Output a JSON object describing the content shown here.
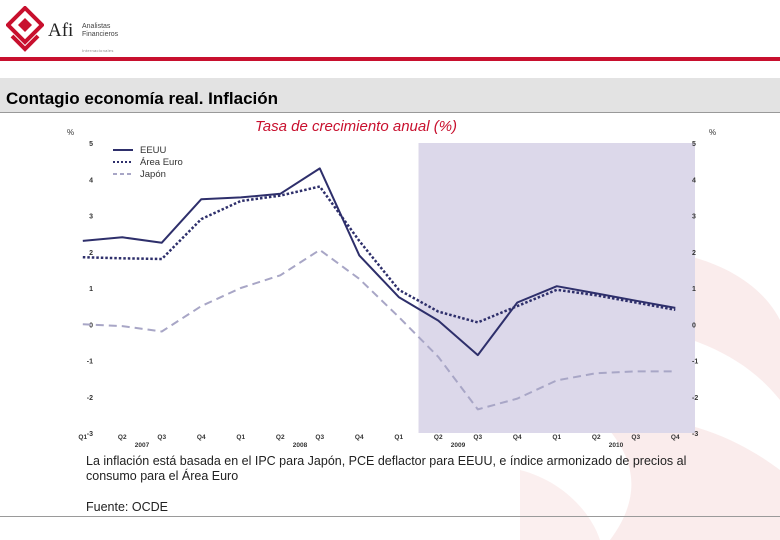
{
  "header": {
    "logo": {
      "wordmark": "Afi",
      "line1": "Analistas",
      "line2": "Financieros",
      "line3": "Internacionales",
      "color": "#c8102e"
    }
  },
  "slide": {
    "title": "Contagio economía real. Inflación",
    "note": "La inflación está basada en el IPC para Japón, PCE deflactor para EEUU, e índice armonizado de precios al consumo para el Área Euro",
    "source": "Fuente: OCDE"
  },
  "chart_data": {
    "type": "line",
    "title": "Tasa de crecimiento anual (%)",
    "ylabel_left": "%",
    "ylabel_right": "%",
    "ylim": [
      -3,
      5
    ],
    "yticks": [
      5,
      4,
      3,
      2,
      1,
      0,
      -1,
      -2,
      -3
    ],
    "categories": [
      "Q1",
      "Q2",
      "Q3",
      "Q4",
      "Q1",
      "Q2",
      "Q3",
      "Q4",
      "Q1",
      "Q2",
      "Q3",
      "Q4",
      "Q1",
      "Q2",
      "Q3",
      "Q4"
    ],
    "years": [
      {
        "label": "2007",
        "center_index": 1.5
      },
      {
        "label": "2008",
        "center_index": 5.5
      },
      {
        "label": "2009",
        "center_index": 9.5
      },
      {
        "label": "2010",
        "center_index": 13.5
      }
    ],
    "forecast_shade": {
      "from_index": 8.5,
      "to_index": 15.5,
      "color": "#dcd8ea"
    },
    "series": [
      {
        "name": "EEUU",
        "style": "solid",
        "color": "#2e2f6b",
        "values": [
          2.3,
          2.4,
          2.25,
          3.45,
          3.5,
          3.6,
          4.3,
          1.9,
          0.75,
          0.1,
          -0.85,
          0.6,
          1.05,
          0.85,
          0.65,
          0.45
        ]
      },
      {
        "name": "Área Euro",
        "style": "dotted",
        "color": "#2e2f6b",
        "values": [
          1.85,
          1.82,
          1.8,
          2.9,
          3.4,
          3.55,
          3.8,
          2.3,
          0.95,
          0.35,
          0.05,
          0.5,
          0.95,
          0.8,
          0.6,
          0.4
        ]
      },
      {
        "name": "Japón",
        "style": "dashed",
        "color": "#a8a6c6",
        "values": [
          0.0,
          -0.05,
          -0.2,
          0.5,
          1.0,
          1.35,
          2.05,
          1.25,
          0.2,
          -0.9,
          -2.35,
          -2.05,
          -1.55,
          -1.35,
          -1.3,
          -1.3
        ]
      }
    ]
  }
}
